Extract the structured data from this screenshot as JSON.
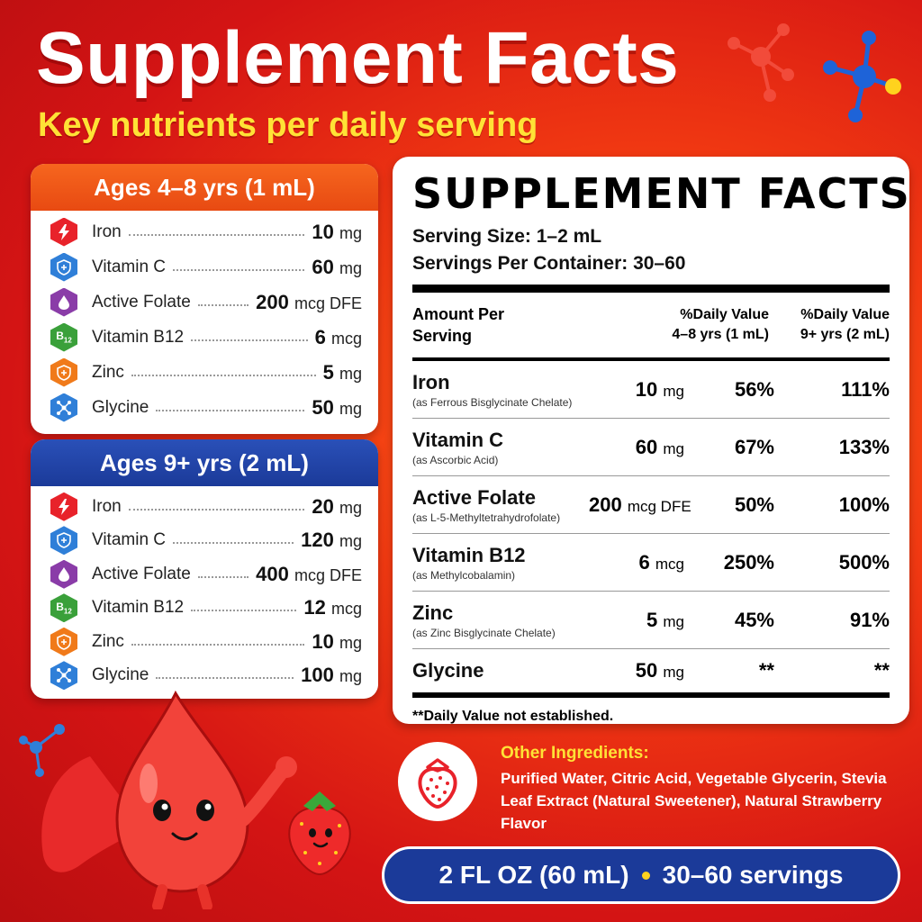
{
  "header": {
    "title": "Supplement Facts",
    "subtitle": "Key nutrients per daily serving"
  },
  "colors": {
    "iron": "#e8222a",
    "vitamin_c": "#2f7fd8",
    "folate": "#8a3ca8",
    "b12": "#3aa03a",
    "zinc": "#f07a1a",
    "glycine": "#2f7fd8"
  },
  "cards": [
    {
      "title": "Ages 4–8 yrs (1 mL)",
      "items": [
        {
          "icon": "lightning-icon",
          "name": "Iron",
          "value": "10",
          "unit": "mg"
        },
        {
          "icon": "shield-icon",
          "name": "Vitamin C",
          "value": "60",
          "unit": "mg"
        },
        {
          "icon": "droplet-icon",
          "name": "Active Folate",
          "value": "200",
          "unit": "mcg DFE"
        },
        {
          "icon": "b12-icon",
          "name": "Vitamin B12",
          "value": "6",
          "unit": "mcg"
        },
        {
          "icon": "shield-icon",
          "name": "Zinc",
          "value": "5",
          "unit": "mg"
        },
        {
          "icon": "molecule-icon",
          "name": "Glycine",
          "value": "50",
          "unit": "mg"
        }
      ]
    },
    {
      "title": "Ages 9+ yrs (2 mL)",
      "items": [
        {
          "icon": "lightning-icon",
          "name": "Iron",
          "value": "20",
          "unit": "mg"
        },
        {
          "icon": "shield-icon",
          "name": "Vitamin C",
          "value": "120",
          "unit": "mg"
        },
        {
          "icon": "droplet-icon",
          "name": "Active Folate",
          "value": "400",
          "unit": "mcg DFE"
        },
        {
          "icon": "b12-icon",
          "name": "Vitamin B12",
          "value": "12",
          "unit": "mcg"
        },
        {
          "icon": "shield-icon",
          "name": "Zinc",
          "value": "10",
          "unit": "mg"
        },
        {
          "icon": "molecule-icon",
          "name": "Glycine",
          "value": "100",
          "unit": "mg"
        }
      ]
    }
  ],
  "facts": {
    "heading": "SUPPLEMENT FACTS",
    "serving_size": "Serving Size: 1–2 mL",
    "servings_per_container": "Servings Per Container: 30–60",
    "col_amount_1": "Amount Per",
    "col_amount_2": "Serving",
    "col_dv1_1": "%Daily Value",
    "col_dv1_2": "4–8 yrs (1 mL)",
    "col_dv2_1": "%Daily Value",
    "col_dv2_2": "9+ yrs (2 mL)",
    "rows": [
      {
        "name": "Iron",
        "source": "(as Ferrous Bisglycinate Chelate)",
        "amount": "10",
        "unit": "mg",
        "dv1": "56%",
        "dv2": "111%"
      },
      {
        "name": "Vitamin C",
        "source": "(as Ascorbic Acid)",
        "amount": "60",
        "unit": "mg",
        "dv1": "67%",
        "dv2": "133%"
      },
      {
        "name": "Active Folate",
        "source": "(as L-5-Methyltetrahydrofolate)",
        "amount": "200",
        "unit": "mcg DFE",
        "dv1": "50%",
        "dv2": "100%"
      },
      {
        "name": "Vitamin B12",
        "source": "(as Methylcobalamin)",
        "amount": "6",
        "unit": "mcg",
        "dv1": "250%",
        "dv2": "500%"
      },
      {
        "name": "Zinc",
        "source": "(as Zinc Bisglycinate Chelate)",
        "amount": "5",
        "unit": "mg",
        "dv1": "45%",
        "dv2": "91%"
      },
      {
        "name": "Glycine",
        "source": "",
        "amount": "50",
        "unit": "mg",
        "dv1": "**",
        "dv2": "**"
      }
    ],
    "footnote": "**Daily Value not established."
  },
  "ingredients": {
    "title": "Other Ingredients:",
    "text": "Purified Water, Citric Acid, Vegetable Glycerin, Stevia Leaf Extract (Natural Sweetener), Natural Strawberry Flavor"
  },
  "bottom": {
    "size": "2 FL OZ (60 mL)",
    "servings": "30–60 servings"
  }
}
